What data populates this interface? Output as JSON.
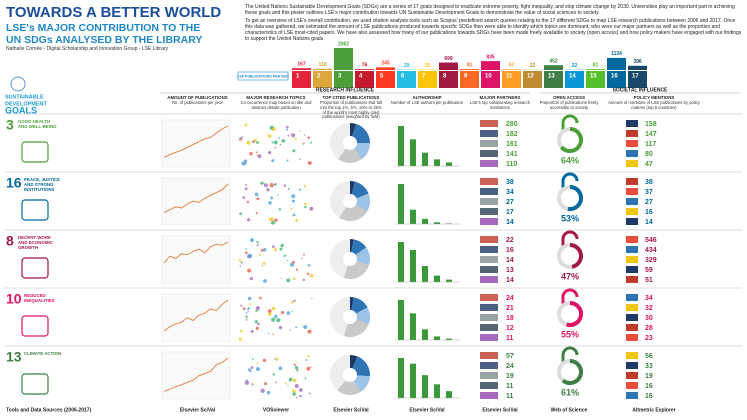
{
  "header": {
    "title": "TOWARDS A BETTER WORLD",
    "subtitle": [
      "LSE's MAJOR CONTRIBUTION TO THE",
      "UN SDGs ANALYSED BY THE LIBRARY"
    ],
    "author": "Nathalie Cornée - Digital Scholarship and Innovation Group - LSE Library",
    "intro": [
      "The United Nations Sustainable Development Goals (SDGs) are a series of 17 goals designed to eradicate extreme poverty, fight inequality, and stop climate change by 2030. Universities play an important part in achieving these goals and this poster outlines LSE's major contribution towards UN Sustainable Development Goals to demonstrate the value of social sciences to society.",
      "To get an overview of LSE's overall contribution, we used citation analysis tools such as Scopus' predefined search queries relating to the 17 different SDGs to map LSE research publications between 2006 and 2017. Once this data was gathered, we estimated the amount of LSE publications produced towards specific SDGs then were able to identify which topics are dominant, who were our major partners as well as the proportion and characteristics of LSE most-cited papers. We have also assessed how many of our publications towards SDGs have been made freely available to society (open access) and how policy makers have engaged with our findings to support the United Nations goals."
    ]
  },
  "sdg_strip": {
    "label": "LSE PUBLICATIONS PER SDG",
    "goals": [
      1,
      2,
      3,
      4,
      5,
      6,
      7,
      8,
      9,
      10,
      11,
      12,
      13,
      14,
      15,
      16,
      17
    ],
    "values": [
      167,
      118,
      2062,
      76,
      245,
      29,
      35,
      699,
      91,
      835,
      57,
      22,
      452,
      22,
      81,
      1134,
      396
    ],
    "colors": [
      "#e5243b",
      "#dda63a",
      "#4c9f38",
      "#c5192d",
      "#ff3a21",
      "#26bde2",
      "#fcc30b",
      "#a21942",
      "#fd6925",
      "#dd1367",
      "#fd9d24",
      "#bf8b2e",
      "#3f7e44",
      "#0a97d9",
      "#56c02b",
      "#00689d",
      "#19486a"
    ]
  },
  "logo": [
    "SUSTAINABLE",
    "DEVELOPMENT",
    "GOALS"
  ],
  "groups": {
    "research": "RESEARCH INFLUENCE",
    "societal": "SOCIETAL INFLUENCE"
  },
  "columns": [
    {
      "title": "AMOUNT OF PUBLICATIONS",
      "subtitle": "No. of publications per year"
    },
    {
      "title": "MAJOR RESEARCH TOPICS",
      "subtitle": "Co-occurrence map based on title and abstract details publication"
    },
    {
      "title": "TOP CITED PUBLICATIONS",
      "subtitle": "Proportion of publications that fall into the top 1%, 5%, 10% or 25% of the world's most highly cited publications (weighted by field)"
    },
    {
      "title": "AUTHORSHIP",
      "subtitle": "Number of LSE authors per publication"
    },
    {
      "title": "MAJOR PARTNERS",
      "subtitle": "LSE's top collaborating research institutions"
    },
    {
      "title": "OPEN ACCESS",
      "subtitle": "Proportion of publications freely accessible to society"
    },
    {
      "title": "POLICY MENTIONS",
      "subtitle": "Amount of mentions of LSE publications by policy makers (top 5 countries)"
    }
  ],
  "rows": [
    {
      "number": "3",
      "name": "GOOD HEALTH AND WELL-BEING",
      "color": "#4c9f38",
      "publications": [
        60,
        80,
        95,
        110,
        130,
        150,
        170,
        190,
        200,
        230,
        260,
        280
      ],
      "top_cited": [
        5,
        20,
        15,
        20
      ],
      "authorship": [
        900,
        600,
        300,
        150,
        80
      ],
      "partners": [
        280,
        182,
        161,
        141,
        110
      ],
      "open_access": {
        "value": 64,
        "label": "64%"
      },
      "policy": [
        158,
        147,
        117,
        80,
        47
      ]
    },
    {
      "number": "16",
      "name": "PEACE, JUSTICE AND STRONG INSTITUTIONS",
      "color": "#00689d",
      "publications": [
        20,
        25,
        30,
        28,
        35,
        40,
        38,
        45,
        50,
        55,
        60,
        70
      ],
      "top_cited": [
        4,
        15,
        15,
        25
      ],
      "authorship": [
        700,
        250,
        90,
        30,
        10
      ],
      "partners": [
        38,
        34,
        27,
        17,
        14
      ],
      "open_access": {
        "value": 53,
        "label": "53%"
      },
      "policy": [
        38,
        37,
        27,
        16,
        14
      ]
    },
    {
      "number": "8",
      "name": "DECENT WORK AND ECONOMIC GROWTH",
      "color": "#a21942",
      "publications": [
        40,
        55,
        50,
        60,
        58,
        65,
        70,
        62,
        75,
        80,
        78,
        85
      ],
      "top_cited": [
        3,
        12,
        15,
        25
      ],
      "authorship": [
        500,
        400,
        200,
        80,
        30
      ],
      "partners": [
        22,
        16,
        14,
        13,
        14
      ],
      "open_access": {
        "value": 47,
        "label": "47%"
      },
      "policy": [
        546,
        434,
        329,
        59,
        51
      ]
    },
    {
      "number": "10",
      "name": "REDUCED INEQUALITIES",
      "color": "#dd1367",
      "publications": [
        10,
        15,
        18,
        20,
        25,
        22,
        28,
        30,
        35,
        33,
        40,
        45
      ],
      "top_cited": [
        3,
        14,
        14,
        24
      ],
      "authorship": [
        450,
        300,
        120,
        40,
        15
      ],
      "partners": [
        24,
        21,
        18,
        12,
        11
      ],
      "open_access": {
        "value": 55,
        "label": "55%"
      },
      "policy": [
        34,
        32,
        30,
        28,
        23
      ]
    },
    {
      "number": "13",
      "name": "CLIMATE ACTION",
      "color": "#3f7e44",
      "publications": [
        15,
        20,
        25,
        30,
        35,
        40,
        50,
        55,
        60,
        75,
        80,
        90
      ],
      "top_cited": [
        6,
        20,
        15,
        20
      ],
      "authorship": [
        350,
        300,
        200,
        120,
        60
      ],
      "partners": [
        57,
        24,
        19,
        11,
        11
      ],
      "open_access": {
        "value": 61,
        "label": "61%"
      },
      "policy": [
        56,
        33,
        19,
        16,
        16
      ]
    }
  ],
  "sources": {
    "label": "Tools and Data Sources (2006-2017)",
    "items": [
      "Elsevier SciVal",
      "VOSviewer",
      "Elsevier SciVal",
      "Elsevier SciVal",
      "Elsevier SciVal",
      "Web of Science",
      "Altmetric Explorer"
    ]
  }
}
